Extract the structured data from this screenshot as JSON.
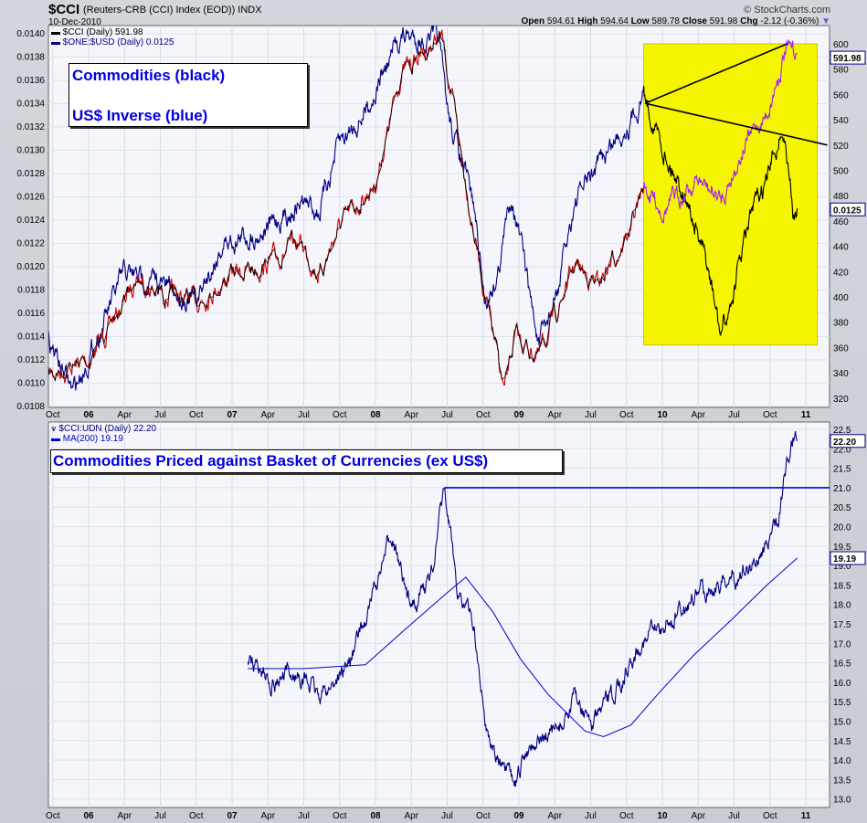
{
  "header": {
    "symbol": "$CCI",
    "description": "(Reuters-CRB (CCI) Index (EOD)) INDX",
    "date": "10-Dec-2010",
    "brand": "© StockCharts.com",
    "open_label": "Open",
    "open": "594.61",
    "high_label": "High",
    "high": "594.64",
    "low_label": "Low",
    "low": "589.78",
    "close_label": "Close",
    "close": "591.98",
    "chg_label": "Chg",
    "chg": "-2.12 (-0.36%)",
    "dropdown_icon": "triangle-down"
  },
  "colors": {
    "cci": "#cc0000",
    "cci_late": "#a020f0",
    "usd_inv": "#000080",
    "usd_late": "#000000",
    "udn": "#000080",
    "ma": "#0000cc",
    "highlight": "#f5f500",
    "annotation": "#0000e0"
  },
  "chart_data": [
    {
      "type": "line",
      "title": "$CCI (Reuters-CRB (CCI) Index (EOD)) vs $ONE:$USD",
      "legend": [
        "$CCI (Daily) 591.98",
        "$ONE:$USD (Daily) 0.0125"
      ],
      "legend_placement": "top-left",
      "annotations": [
        "Commodities (black)",
        "US$ Inverse (blue)"
      ],
      "last_value_labels": {
        "cci": "591.98",
        "usd": "0.0125"
      },
      "x_ticks": [
        {
          "x": 2005.75,
          "label": "Oct"
        },
        {
          "x": 2006,
          "label": "06",
          "major": true
        },
        {
          "x": 2006.25,
          "label": "Apr"
        },
        {
          "x": 2006.5,
          "label": "Jul"
        },
        {
          "x": 2006.75,
          "label": "Oct"
        },
        {
          "x": 2007,
          "label": "07",
          "major": true
        },
        {
          "x": 2007.25,
          "label": "Apr"
        },
        {
          "x": 2007.5,
          "label": "Jul"
        },
        {
          "x": 2007.75,
          "label": "Oct"
        },
        {
          "x": 2008,
          "label": "08",
          "major": true
        },
        {
          "x": 2008.25,
          "label": "Apr"
        },
        {
          "x": 2008.5,
          "label": "Jul"
        },
        {
          "x": 2008.75,
          "label": "Oct"
        },
        {
          "x": 2009,
          "label": "09",
          "major": true
        },
        {
          "x": 2009.25,
          "label": "Apr"
        },
        {
          "x": 2009.5,
          "label": "Jul"
        },
        {
          "x": 2009.75,
          "label": "Oct"
        },
        {
          "x": 2010,
          "label": "10",
          "major": true
        },
        {
          "x": 2010.25,
          "label": "Apr"
        },
        {
          "x": 2010.5,
          "label": "Jul"
        },
        {
          "x": 2010.75,
          "label": "Oct"
        },
        {
          "x": 2011,
          "label": "11",
          "major": true
        }
      ],
      "left_axis": {
        "ylim": [
          0.0108,
          0.014
        ],
        "ticks": [
          "0.0140",
          "0.0138",
          "0.0136",
          "0.0134",
          "0.0132",
          "0.0130",
          "0.0128",
          "0.0126",
          "0.0124",
          "0.0122",
          "0.0120",
          "0.0118",
          "0.0116",
          "0.0114",
          "0.0112",
          "0.0110",
          "0.0108"
        ]
      },
      "right_axis": {
        "ylim": [
          320,
          600
        ],
        "ticks": [
          "600",
          "580",
          "560",
          "540",
          "520",
          "500",
          "480",
          "460",
          "440",
          "420",
          "400",
          "380",
          "360",
          "340",
          "320"
        ]
      },
      "highlight_region": {
        "x": [
          2009.87,
          2011.08
        ],
        "y_right": [
          362,
          600
        ]
      },
      "trendlines": [
        {
          "from": [
            2009.88,
            553
          ],
          "to": [
            2010.87,
            600
          ]
        },
        {
          "from": [
            2009.88,
            553
          ],
          "to": [
            2011.15,
            520
          ]
        }
      ],
      "series": [
        {
          "name": "$CCI (Daily)",
          "axis": "right",
          "points": [
            [
              2005.72,
              339
            ],
            [
              2005.89,
              345
            ],
            [
              2006.0,
              350
            ],
            [
              2006.25,
              396
            ],
            [
              2006.33,
              418
            ],
            [
              2006.46,
              404
            ],
            [
              2006.75,
              396
            ],
            [
              2006.94,
              412
            ],
            [
              2007.0,
              418
            ],
            [
              2007.23,
              425
            ],
            [
              2007.48,
              443
            ],
            [
              2007.61,
              418
            ],
            [
              2007.74,
              454
            ],
            [
              2008.0,
              490
            ],
            [
              2008.18,
              577
            ],
            [
              2008.46,
              606
            ],
            [
              2008.55,
              545
            ],
            [
              2008.76,
              404
            ],
            [
              2008.9,
              324
            ],
            [
              2008.97,
              368
            ],
            [
              2009.14,
              353
            ],
            [
              2009.39,
              425
            ],
            [
              2009.55,
              410
            ],
            [
              2009.78,
              454
            ],
            [
              2009.87,
              487
            ],
            [
              2010.0,
              470
            ],
            [
              2010.1,
              478
            ],
            [
              2010.25,
              492
            ],
            [
              2010.41,
              476
            ],
            [
              2010.57,
              520
            ],
            [
              2010.73,
              545
            ],
            [
              2010.86,
              595
            ],
            [
              2010.94,
              591.98
            ]
          ]
        },
        {
          "name": "$ONE:$USD (Daily)",
          "axis": "left",
          "points": [
            [
              2005.72,
              0.01139
            ],
            [
              2005.89,
              0.01092
            ],
            [
              2006.0,
              0.01122
            ],
            [
              2006.25,
              0.01194
            ],
            [
              2006.46,
              0.01187
            ],
            [
              2006.75,
              0.0117
            ],
            [
              2006.94,
              0.01221
            ],
            [
              2007.23,
              0.01232
            ],
            [
              2007.48,
              0.01256
            ],
            [
              2007.61,
              0.01248
            ],
            [
              2007.74,
              0.01304
            ],
            [
              2007.93,
              0.01335
            ],
            [
              2008.18,
              0.01398
            ],
            [
              2008.44,
              0.01394
            ],
            [
              2008.5,
              0.01335
            ],
            [
              2008.69,
              0.01249
            ],
            [
              2008.76,
              0.0117
            ],
            [
              2008.85,
              0.01194
            ],
            [
              2008.95,
              0.01264
            ],
            [
              2009.14,
              0.01131
            ],
            [
              2009.27,
              0.01178
            ],
            [
              2009.39,
              0.01256
            ],
            [
              2009.59,
              0.01295
            ],
            [
              2009.78,
              0.01327
            ],
            [
              2009.87,
              0.0135
            ],
            [
              2010.0,
              0.01303
            ],
            [
              2010.16,
              0.01264
            ],
            [
              2010.32,
              0.01194
            ],
            [
              2010.41,
              0.01139
            ],
            [
              2010.48,
              0.0117
            ],
            [
              2010.61,
              0.0124
            ],
            [
              2010.73,
              0.01272
            ],
            [
              2010.83,
              0.01319
            ],
            [
              2010.86,
              0.01303
            ],
            [
              2010.91,
              0.01245
            ],
            [
              2010.94,
              0.0125
            ]
          ]
        }
      ]
    },
    {
      "type": "line",
      "title": "$CCI:UDN",
      "legend": [
        "$CCI:UDN (Daily) 22.20",
        "MA(200) 19.19"
      ],
      "legend_placement": "top-left",
      "annotations": [
        "Commodities Priced against Basket of Currencies (ex US$)"
      ],
      "last_value_labels": {
        "udn": "22.20",
        "ma": "19.19"
      },
      "right_axis": {
        "ylim": [
          13.0,
          22.5
        ],
        "ticks": [
          "22.5",
          "22.0",
          "21.5",
          "21.0",
          "20.5",
          "20.0",
          "19.5",
          "19.0",
          "18.5",
          "18.0",
          "17.5",
          "17.0",
          "16.5",
          "16.0",
          "15.5",
          "15.0",
          "14.5",
          "14.0",
          "13.5",
          "13.0"
        ]
      },
      "horizontal_line": {
        "value": 21.0,
        "from_x": 2008.48
      },
      "series": [
        {
          "name": "$CCI:UDN (Daily)",
          "points": [
            [
              2007.11,
              16.63
            ],
            [
              2007.29,
              16.05
            ],
            [
              2007.48,
              16.2
            ],
            [
              2007.61,
              15.6
            ],
            [
              2007.8,
              16.4
            ],
            [
              2007.93,
              17.57
            ],
            [
              2008.12,
              19.9
            ],
            [
              2008.22,
              18.0
            ],
            [
              2008.38,
              18.6
            ],
            [
              2008.48,
              20.86
            ],
            [
              2008.57,
              18.5
            ],
            [
              2008.69,
              17.4
            ],
            [
              2008.76,
              15.0
            ],
            [
              2008.89,
              13.6
            ],
            [
              2008.98,
              13.35
            ],
            [
              2009.08,
              14.5
            ],
            [
              2009.27,
              14.7
            ],
            [
              2009.39,
              15.6
            ],
            [
              2009.52,
              14.9
            ],
            [
              2009.65,
              15.6
            ],
            [
              2009.84,
              17.0
            ],
            [
              2010.03,
              17.5
            ],
            [
              2010.22,
              18.2
            ],
            [
              2010.41,
              18.6
            ],
            [
              2010.61,
              18.9
            ],
            [
              2010.73,
              19.6
            ],
            [
              2010.8,
              19.9
            ],
            [
              2010.86,
              21.5
            ],
            [
              2010.91,
              22.27
            ],
            [
              2010.94,
              22.2
            ]
          ]
        },
        {
          "name": "MA(200)",
          "points": [
            [
              2007.11,
              16.35
            ],
            [
              2007.5,
              16.35
            ],
            [
              2007.93,
              16.45
            ],
            [
              2008.22,
              17.4
            ],
            [
              2008.5,
              18.3
            ],
            [
              2008.63,
              18.7
            ],
            [
              2008.82,
              17.8
            ],
            [
              2009.01,
              16.6
            ],
            [
              2009.2,
              15.7
            ],
            [
              2009.46,
              14.75
            ],
            [
              2009.59,
              14.6
            ],
            [
              2009.78,
              14.9
            ],
            [
              2009.97,
              15.7
            ],
            [
              2010.22,
              16.7
            ],
            [
              2010.48,
              17.6
            ],
            [
              2010.73,
              18.5
            ],
            [
              2010.94,
              19.19
            ]
          ]
        }
      ]
    }
  ]
}
